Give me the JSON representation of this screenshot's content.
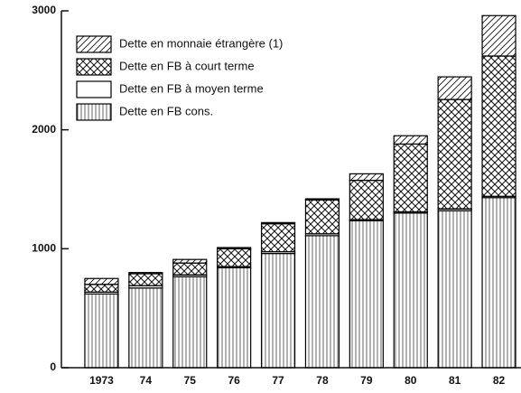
{
  "chart_data": {
    "type": "stacked_bar",
    "categories": [
      "1973",
      "74",
      "75",
      "76",
      "77",
      "78",
      "79",
      "80",
      "81",
      "82"
    ],
    "series": [
      {
        "name": "Dette en FB cons.",
        "color": "#000000",
        "pattern": "vertical",
        "values": [
          620,
          670,
          765,
          840,
          960,
          1110,
          1235,
          1300,
          1320,
          1430
        ]
      },
      {
        "name": "Dette en FB à moyen terme",
        "color": "#000000",
        "pattern": "none",
        "values": [
          15,
          20,
          15,
          10,
          15,
          15,
          10,
          10,
          15,
          10
        ]
      },
      {
        "name": "Dette en FB à court terme",
        "color": "#000000",
        "pattern": "crosshatch",
        "values": [
          65,
          100,
          100,
          150,
          235,
          285,
          330,
          570,
          920,
          1180
        ]
      },
      {
        "name": "Dette en monnaie étrangère (1)",
        "color": "#000000",
        "pattern": "diagonal",
        "values": [
          50,
          10,
          30,
          10,
          10,
          10,
          55,
          70,
          190,
          340
        ]
      }
    ],
    "ylim": [
      0,
      3000
    ],
    "yticks": [
      0,
      1000,
      2000,
      3000
    ],
    "grid": false
  }
}
